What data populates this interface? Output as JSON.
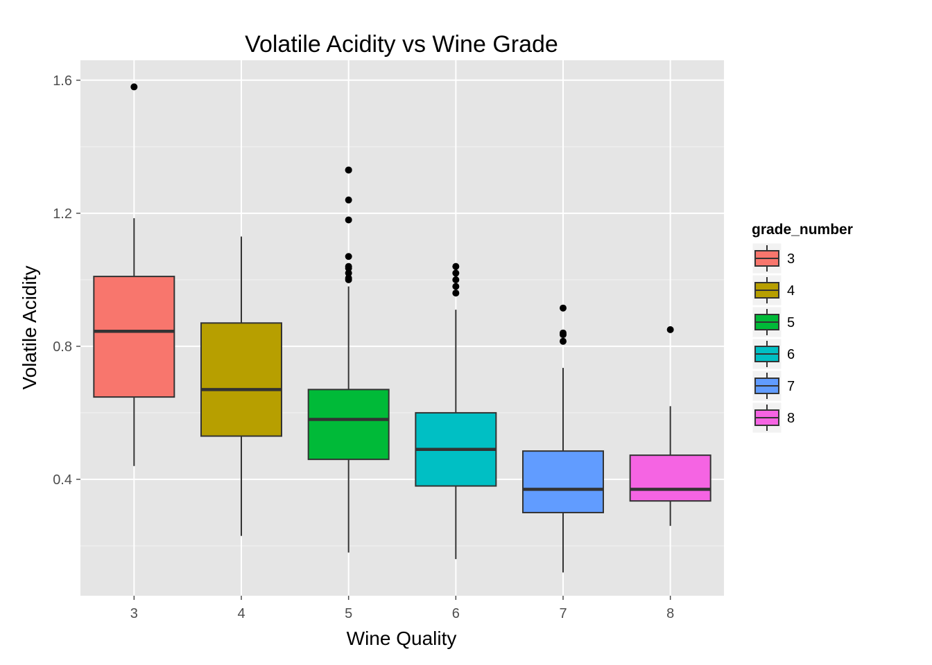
{
  "chart_data": {
    "type": "boxplot",
    "title": "Volatile Acidity vs Wine Grade",
    "xlabel": "Wine Quality",
    "ylabel": "Volatile Acidity",
    "categories": [
      "3",
      "4",
      "5",
      "6",
      "7",
      "8"
    ],
    "ylim": [
      0.05,
      1.66
    ],
    "y_ticks": [
      0.4,
      0.8,
      1.2,
      1.6
    ],
    "y_tick_labels": [
      "0.4",
      "0.8",
      "1.2",
      "1.6"
    ],
    "grid": true,
    "legend": {
      "title": "grade_number",
      "position": "right",
      "entries": [
        "3",
        "4",
        "5",
        "6",
        "7",
        "8"
      ]
    },
    "series": [
      {
        "category": "3",
        "color": "#F8766D",
        "lower_whisker": 0.44,
        "q1": 0.6475,
        "median": 0.845,
        "q3": 1.01,
        "upper_whisker": 1.185,
        "outliers": [
          1.58
        ]
      },
      {
        "category": "4",
        "color": "#B79F00",
        "lower_whisker": 0.23,
        "q1": 0.53,
        "median": 0.67,
        "q3": 0.87,
        "upper_whisker": 1.13,
        "outliers": []
      },
      {
        "category": "5",
        "color": "#00BA38",
        "lower_whisker": 0.18,
        "q1": 0.46,
        "median": 0.58,
        "q3": 0.67,
        "upper_whisker": 0.98,
        "outliers": [
          1.0,
          1.005,
          1.02,
          1.035,
          1.04,
          1.07,
          1.18,
          1.24,
          1.33,
          1.33
        ]
      },
      {
        "category": "6",
        "color": "#00BFC4",
        "lower_whisker": 0.16,
        "q1": 0.38,
        "median": 0.49,
        "q3": 0.6,
        "upper_whisker": 0.91,
        "outliers": [
          0.96,
          0.98,
          1.0,
          1.02,
          1.04
        ]
      },
      {
        "category": "7",
        "color": "#619CFF",
        "lower_whisker": 0.12,
        "q1": 0.3,
        "median": 0.37,
        "q3": 0.485,
        "upper_whisker": 0.735,
        "outliers": [
          0.815,
          0.835,
          0.84,
          0.915
        ]
      },
      {
        "category": "8",
        "color": "#F564E3",
        "lower_whisker": 0.26,
        "q1": 0.335,
        "median": 0.37,
        "q3": 0.4725,
        "upper_whisker": 0.62,
        "outliers": [
          0.85
        ]
      }
    ]
  }
}
